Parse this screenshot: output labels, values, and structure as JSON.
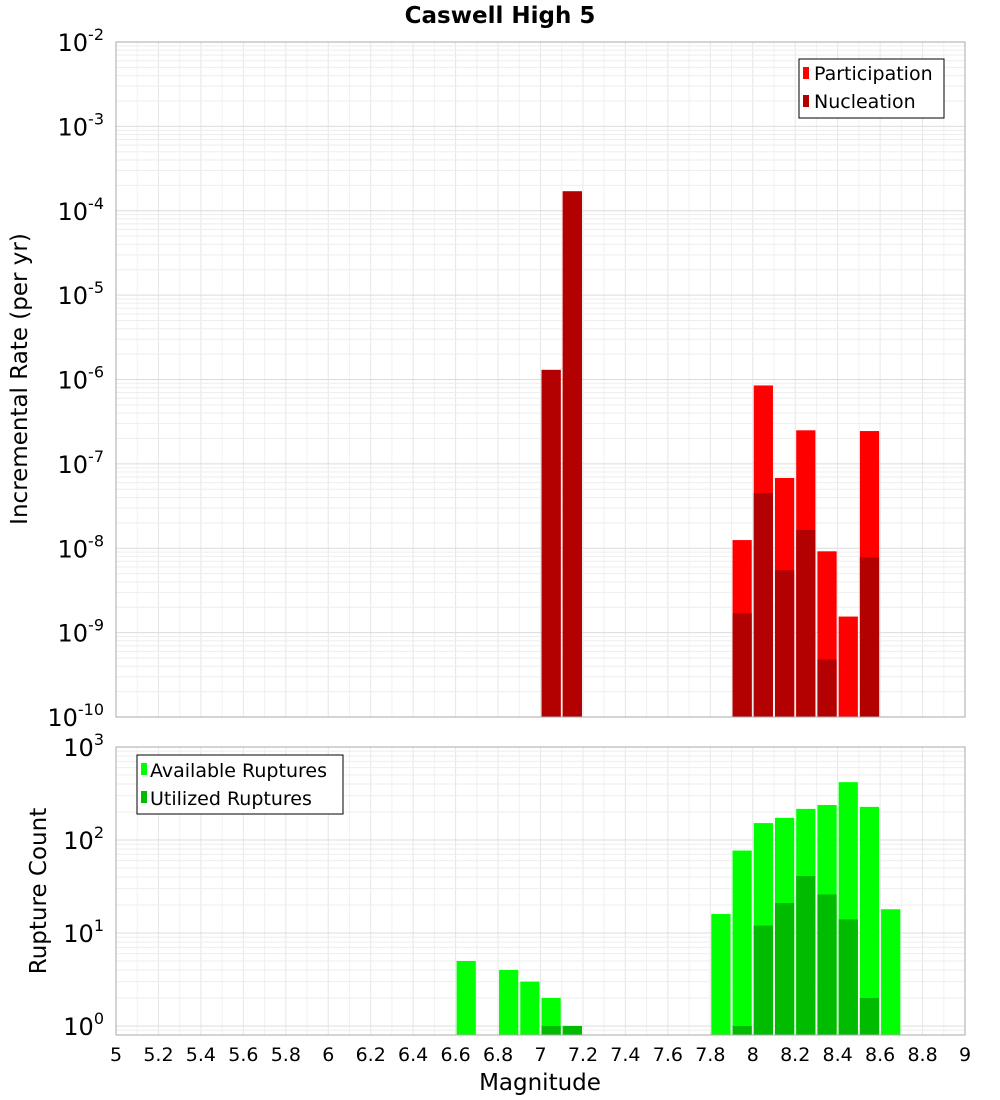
{
  "chart_data": [
    {
      "type": "bar",
      "title": "Caswell High 5",
      "ylabel": "Incremental Rate (per yr)",
      "xlabel": "",
      "log_y": true,
      "ylim": [
        1e-10,
        0.01
      ],
      "xlim": [
        5,
        9
      ],
      "grid": true,
      "legend_position": "top-right",
      "y_tick_exponents": [
        -10,
        -9,
        -8,
        -7,
        -6,
        -5,
        -4,
        -3,
        -2
      ],
      "bin_width": 0.1,
      "series": [
        {
          "name": "Participation",
          "color": "#ff0000",
          "points": [
            {
              "x": 7.05,
              "y": 1.3e-06
            },
            {
              "x": 7.15,
              "y": 0.00017
            },
            {
              "x": 7.95,
              "y": 1.25e-08
            },
            {
              "x": 8.05,
              "y": 8.5e-07
            },
            {
              "x": 8.15,
              "y": 6.8e-08
            },
            {
              "x": 8.25,
              "y": 2.5e-07
            },
            {
              "x": 8.35,
              "y": 9.2e-09
            },
            {
              "x": 8.45,
              "y": 1.55e-09
            },
            {
              "x": 8.55,
              "y": 2.45e-07
            }
          ]
        },
        {
          "name": "Nucleation",
          "color": "#b30000",
          "points": [
            {
              "x": 7.05,
              "y": 1.3e-06
            },
            {
              "x": 7.15,
              "y": 0.00017
            },
            {
              "x": 7.95,
              "y": 1.7e-09
            },
            {
              "x": 8.05,
              "y": 4.5e-08
            },
            {
              "x": 8.15,
              "y": 5.5e-09
            },
            {
              "x": 8.25,
              "y": 1.65e-08
            },
            {
              "x": 8.35,
              "y": 4.8e-10
            },
            {
              "x": 8.55,
              "y": 7.8e-09
            }
          ]
        }
      ]
    },
    {
      "type": "bar",
      "title": "",
      "ylabel": "Rupture Count",
      "xlabel": "Magnitude",
      "log_y": true,
      "ylim": [
        0.8,
        1000
      ],
      "xlim": [
        5,
        9
      ],
      "grid": true,
      "legend_position": "top-left",
      "y_tick_exponents": [
        0,
        1,
        2,
        3
      ],
      "x_ticks": [
        "5",
        "5.2",
        "5.4",
        "5.6",
        "5.8",
        "6",
        "6.2",
        "6.4",
        "6.6",
        "6.8",
        "7",
        "7.2",
        "7.4",
        "7.6",
        "7.8",
        "8",
        "8.2",
        "8.4",
        "8.6",
        "8.8",
        "9"
      ],
      "bin_width": 0.1,
      "series": [
        {
          "name": "Available Ruptures",
          "color": "#00ff00",
          "points": [
            {
              "x": 6.65,
              "y": 5
            },
            {
              "x": 6.85,
              "y": 4
            },
            {
              "x": 6.95,
              "y": 3
            },
            {
              "x": 7.05,
              "y": 2
            },
            {
              "x": 7.15,
              "y": 1
            },
            {
              "x": 7.85,
              "y": 16
            },
            {
              "x": 7.95,
              "y": 77
            },
            {
              "x": 8.05,
              "y": 152
            },
            {
              "x": 8.15,
              "y": 173
            },
            {
              "x": 8.25,
              "y": 216
            },
            {
              "x": 8.35,
              "y": 238
            },
            {
              "x": 8.45,
              "y": 419
            },
            {
              "x": 8.55,
              "y": 227
            },
            {
              "x": 8.65,
              "y": 18
            }
          ]
        },
        {
          "name": "Utilized Ruptures",
          "color": "#00bb00",
          "points": [
            {
              "x": 7.05,
              "y": 1
            },
            {
              "x": 7.15,
              "y": 1
            },
            {
              "x": 7.95,
              "y": 1
            },
            {
              "x": 8.05,
              "y": 12
            },
            {
              "x": 8.15,
              "y": 21
            },
            {
              "x": 8.25,
              "y": 41
            },
            {
              "x": 8.35,
              "y": 26
            },
            {
              "x": 8.45,
              "y": 14
            },
            {
              "x": 8.55,
              "y": 2
            }
          ]
        }
      ]
    }
  ]
}
